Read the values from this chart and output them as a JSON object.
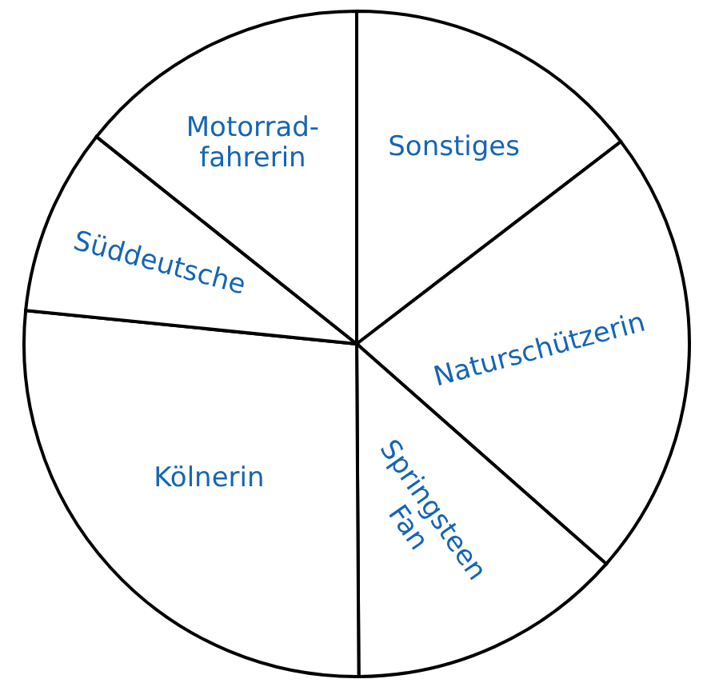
{
  "chart_data": {
    "type": "pie",
    "categories": [
      "Sonstiges",
      "Naturschützerin",
      "Springsteen\nFan",
      "Kölnerin",
      "Süddeutsche",
      "Motorrad-\nfahrerin"
    ],
    "values": [
      14.6,
      21.9,
      13.4,
      26.7,
      9.1,
      14.3
    ],
    "colors": [
      "#ffffff",
      "#ffffff",
      "#ffffff",
      "#ffffff",
      "#ffffff",
      "#ffffff"
    ],
    "legend": false
  }
}
